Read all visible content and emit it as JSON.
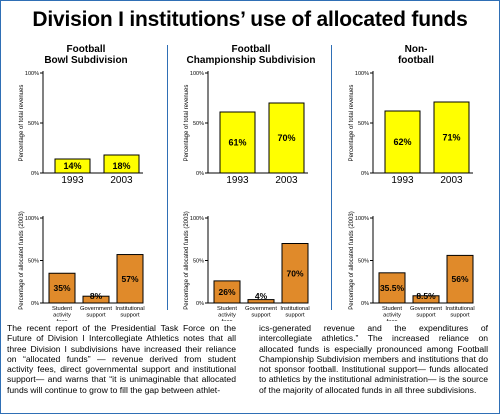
{
  "title": "Division I institutions’ use of allocated funds",
  "columns": [
    {
      "heading": "Football\nBowl Subdivision"
    },
    {
      "heading": "Football\nChampionship Subdivision"
    },
    {
      "heading": "Non-\nfootball"
    }
  ],
  "colors": {
    "revenue_bars": "#ffff00",
    "allocated_bars": "#e08a2a",
    "divider": "#2f6fb5"
  },
  "chart_data": [
    {
      "type": "bar",
      "panel": "Football Bowl Subdivision - revenues",
      "ylabel": "Percentage of total revenues",
      "ylim": [
        0,
        100
      ],
      "yticks": [
        "0%",
        "50%",
        "100%"
      ],
      "categories": [
        "1993",
        "2003"
      ],
      "values": [
        14,
        18
      ],
      "data_labels": [
        "14%",
        "18%"
      ]
    },
    {
      "type": "bar",
      "panel": "Football Championship Subdivision - revenues",
      "ylabel": "Percentage of total revenues",
      "ylim": [
        0,
        100
      ],
      "yticks": [
        "0%",
        "50%",
        "100%"
      ],
      "categories": [
        "1993",
        "2003"
      ],
      "values": [
        61,
        70
      ],
      "data_labels": [
        "61%",
        "70%"
      ]
    },
    {
      "type": "bar",
      "panel": "Non-football - revenues",
      "ylabel": "Percentage of total revenues",
      "ylim": [
        0,
        100
      ],
      "yticks": [
        "0%",
        "50%",
        "100%"
      ],
      "categories": [
        "1993",
        "2003"
      ],
      "values": [
        62,
        71
      ],
      "data_labels": [
        "62%",
        "71%"
      ]
    },
    {
      "type": "bar",
      "panel": "Football Bowl Subdivision - allocated funds",
      "ylabel": "Percentage of allocated funds (2003)",
      "ylim": [
        0,
        100
      ],
      "yticks": [
        "0%",
        "50%",
        "100%"
      ],
      "categories": [
        "Student\nactivity\nfees",
        "Government\nsupport",
        "Institutional\nsupport"
      ],
      "values": [
        35,
        8,
        57
      ],
      "data_labels": [
        "35%",
        "8%",
        "57%"
      ]
    },
    {
      "type": "bar",
      "panel": "Football Championship Subdivision - allocated funds",
      "ylabel": "Percentage of allocated funds (2003)",
      "ylim": [
        0,
        100
      ],
      "yticks": [
        "0%",
        "50%",
        "100%"
      ],
      "categories": [
        "Student\nactivity\nfees",
        "Government\nsupport",
        "Institutional\nsupport"
      ],
      "values": [
        26,
        4,
        70
      ],
      "data_labels": [
        "26%",
        "4%",
        "70%"
      ]
    },
    {
      "type": "bar",
      "panel": "Non-football - allocated funds",
      "ylabel": "Percentage of allocated funds (2003)",
      "ylim": [
        0,
        100
      ],
      "yticks": [
        "0%",
        "50%",
        "100%"
      ],
      "categories": [
        "Student\nactivity\nfees",
        "Government\nsupport",
        "Institutional\nsupport"
      ],
      "values": [
        35.5,
        8.5,
        56
      ],
      "data_labels": [
        "35.5%",
        "8.5%",
        "56%"
      ]
    }
  ],
  "footnote": {
    "left": "The recent report of the Presidential Task Force on the Future of Division I Intercollegiate Athletics notes that all three Division I subdivisions have increased their reliance on “allocated funds” — revenue derived from student activity fees, direct governmental support and institutional support— and warns that “it is unimaginable that allocated funds will continue to grow to fill the gap between athlet-",
    "right": "ics-generated revenue and the expenditures of intercollegiate athletics.” The increased reliance on allocated funds is especially pronounced among Football Championship Subdivision members and institutions that do not sponsor football. Institutional support— funds allocated to athletics by the institutional administration— is the source of the majority of allocated funds in all three subdivisions."
  }
}
